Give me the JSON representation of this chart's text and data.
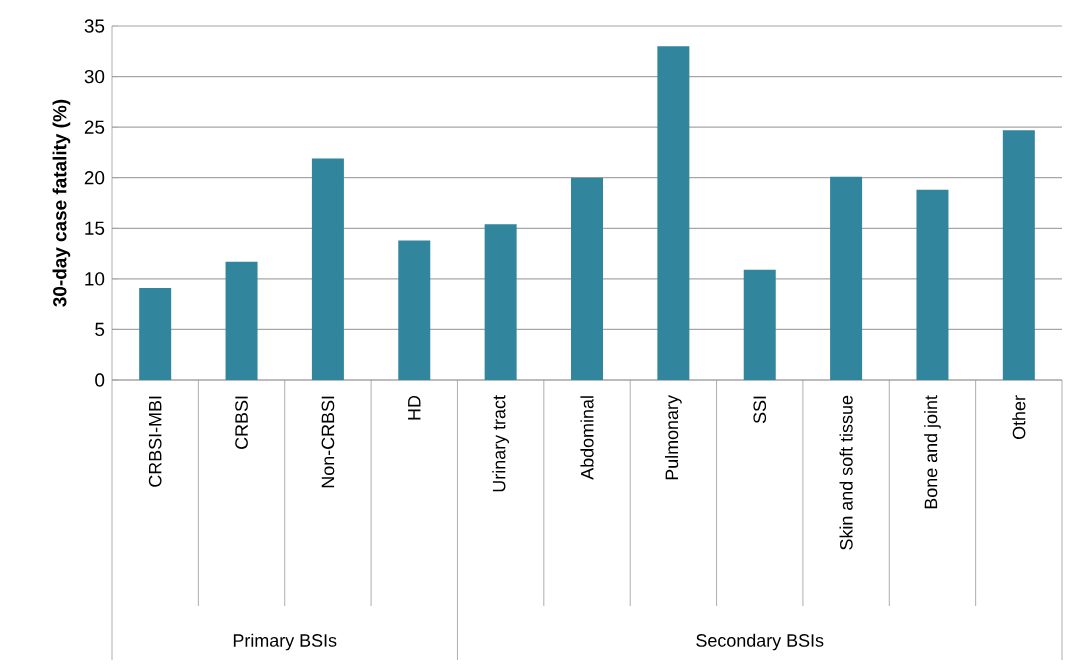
{
  "chart_data": {
    "type": "bar",
    "ylabel": "30-day case fatality (%)",
    "categories": [
      "CRBSI-MBI",
      "CRBSI",
      "Non-CRBSI",
      "HD",
      "Urinary tract",
      "Abdominal",
      "Pulmonary",
      "SSI",
      "Skin and soft tissue",
      "Bone and joint",
      "Other"
    ],
    "values": [
      9.1,
      11.7,
      21.9,
      13.8,
      15.4,
      20.0,
      33.0,
      10.9,
      20.1,
      18.8,
      24.7
    ],
    "color": "#31859c",
    "ylim": [
      0,
      35
    ],
    "yticks": [
      0,
      5,
      10,
      15,
      20,
      25,
      30,
      35
    ],
    "grid": "y",
    "annotations": [
      "Primary BSIs",
      "Secondary BSIs"
    ]
  }
}
